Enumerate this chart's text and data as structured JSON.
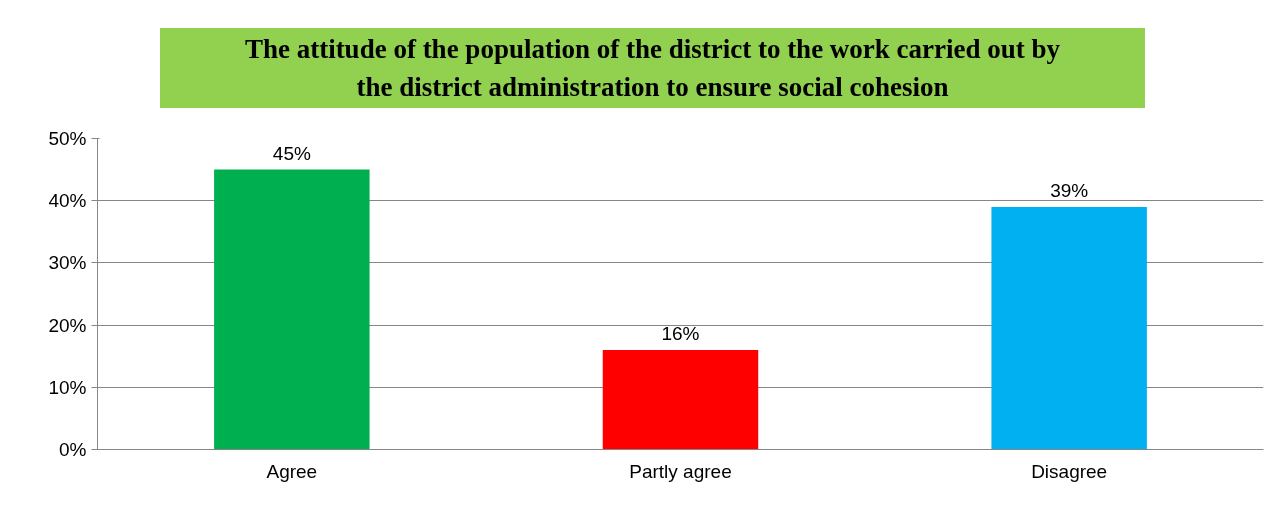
{
  "chart_data": {
    "type": "bar",
    "title": "The attitude of the population of the district to the work carried out by the district administration to ensure social cohesion",
    "categories": [
      "Agree",
      "Partly agree",
      "Disagree"
    ],
    "values": [
      45,
      16,
      39
    ],
    "colors": [
      "#00b050",
      "#ff0000",
      "#00b0f0"
    ],
    "value_labels": [
      "45%",
      "16%",
      "39%"
    ],
    "ylim": [
      0,
      50
    ],
    "yticks": [
      {
        "value": 0,
        "label": "0%"
      },
      {
        "value": 10,
        "label": "10%"
      },
      {
        "value": 20,
        "label": "20%"
      },
      {
        "value": 30,
        "label": "30%"
      },
      {
        "value": 40,
        "label": "40%"
      },
      {
        "value": 50,
        "label": "50%"
      }
    ],
    "grid": "y"
  }
}
